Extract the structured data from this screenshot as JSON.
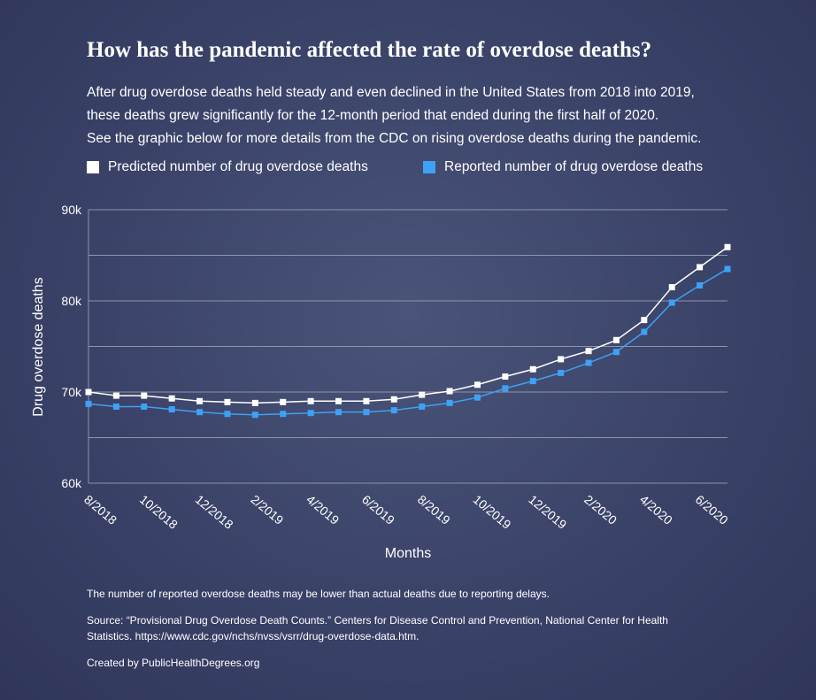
{
  "header": {
    "title": "How has the pandemic affected the rate of overdose deaths?",
    "description": [
      "After drug overdose deaths held steady and even declined in the United States from 2018 into 2019,",
      "these deaths grew significantly for the 12-month period that ended during the first half of 2020.",
      "See the graphic below for more details from the CDC on rising overdose deaths during the pandemic."
    ]
  },
  "footer": {
    "note": "The number of reported overdose deaths may be lower than actual deaths due to reporting delays.",
    "source_line1": "Source: “Provisional Drug Overdose Death Counts.” Centers for Disease Control and Prevention, National Center for Health",
    "source_line2": "Statistics. https://www.cdc.gov/nchs/nvss/vsrr/drug-overdose-data.htm.",
    "credit": "Created by PublicHealthDegrees.org"
  },
  "colors": {
    "predicted": "#ffffff",
    "reported": "#3ea1f5",
    "grid": "#8e94ad"
  },
  "chart_data": {
    "type": "line",
    "xlabel": "Months",
    "ylabel": "Drug overdose deaths",
    "ylim": [
      60000,
      90000
    ],
    "y_ticks": [
      60000,
      65000,
      70000,
      75000,
      80000,
      85000,
      90000
    ],
    "y_tick_labels": [
      "60k",
      "",
      "70k",
      "",
      "80k",
      "",
      "90k"
    ],
    "grid": true,
    "legend_position": "top",
    "x": [
      "8/2018",
      "9/2018",
      "10/2018",
      "11/2018",
      "12/2018",
      "1/2019",
      "2/2019",
      "3/2019",
      "4/2019",
      "5/2019",
      "6/2019",
      "7/2019",
      "8/2019",
      "9/2019",
      "10/2019",
      "11/2019",
      "12/2019",
      "1/2020",
      "2/2020",
      "3/2020",
      "4/2020",
      "5/2020",
      "6/2020",
      "7/2020"
    ],
    "x_tick_labels": [
      "8/2018",
      "",
      "10/2018",
      "",
      "12/2018",
      "",
      "2/2019",
      "",
      "4/2019",
      "",
      "6/2019",
      "",
      "8/2019",
      "",
      "10/2019",
      "",
      "12/2019",
      "",
      "2/2020",
      "",
      "4/2020",
      "",
      "6/2020",
      ""
    ],
    "series": [
      {
        "name": "Predicted number of drug overdose deaths",
        "color": "#ffffff",
        "values": [
          70000,
          69600,
          69600,
          69300,
          69000,
          68900,
          68800,
          68900,
          69000,
          69000,
          69000,
          69200,
          69700,
          70100,
          70800,
          71700,
          72500,
          73600,
          74500,
          75700,
          77900,
          81500,
          83700,
          85900
        ]
      },
      {
        "name": "Reported number of drug overdose deaths",
        "color": "#3ea1f5",
        "values": [
          68700,
          68400,
          68400,
          68100,
          67800,
          67600,
          67500,
          67600,
          67700,
          67800,
          67800,
          68000,
          68400,
          68800,
          69400,
          70400,
          71200,
          72100,
          73200,
          74400,
          76600,
          79800,
          81700,
          83500
        ]
      }
    ]
  }
}
